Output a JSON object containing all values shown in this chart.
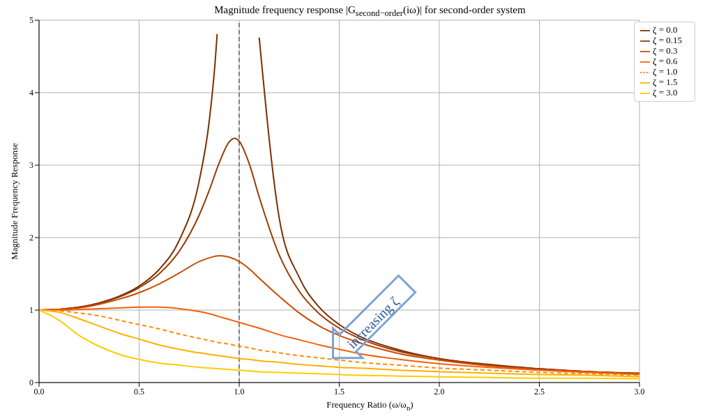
{
  "chart_data": {
    "type": "line",
    "title": "Magnitude frequency response |G$_{second−order}$(iω)| for second-order system",
    "xlabel": "Frequency Ratio (ω/ω$_{n}$)",
    "ylabel": "Magnitude Frequency Response",
    "x": [
      0,
      0.1,
      0.2,
      0.3,
      0.4,
      0.5,
      0.6,
      0.7,
      0.8,
      0.85,
      0.9,
      0.95,
      1.0,
      1.05,
      1.1,
      1.2,
      1.3,
      1.4,
      1.5,
      1.6,
      1.8,
      2.0,
      2.25,
      2.5,
      2.75,
      3.0
    ],
    "series": [
      {
        "name": "ζ = 0.0",
        "color": "#7a2e00",
        "x": [
          0,
          0.1,
          0.2,
          0.3,
          0.4,
          0.5,
          0.6,
          0.7,
          0.8,
          0.85,
          0.88,
          0.89,
          1.0,
          1.1,
          1.2,
          1.3,
          1.4,
          1.5,
          1.6,
          1.8,
          2.0,
          2.25,
          2.5,
          2.75,
          3.0
        ],
        "values": [
          1,
          1.01,
          1.04,
          1.1,
          1.19,
          1.33,
          1.56,
          1.96,
          2.78,
          3.6,
          4.43,
          4.81,
          null,
          4.76,
          2.27,
          1.45,
          1.04,
          0.8,
          0.64,
          0.45,
          0.33,
          0.25,
          0.19,
          0.15,
          0.13
        ]
      },
      {
        "name": "ζ = 0.15",
        "color": "#973a00",
        "x": [
          0,
          0.1,
          0.2,
          0.3,
          0.4,
          0.5,
          0.6,
          0.7,
          0.8,
          0.85,
          0.9,
          0.95,
          0.977,
          1.0,
          1.05,
          1.1,
          1.2,
          1.3,
          1.4,
          1.5,
          1.6,
          1.8,
          2.0,
          2.25,
          2.5,
          2.75,
          3.0
        ],
        "values": [
          1,
          1.01,
          1.04,
          1.09,
          1.18,
          1.31,
          1.5,
          1.81,
          2.31,
          2.65,
          3.03,
          3.32,
          3.37,
          3.33,
          3.02,
          2.56,
          1.76,
          1.26,
          0.95,
          0.75,
          0.61,
          0.43,
          0.33,
          0.24,
          0.19,
          0.15,
          0.12
        ]
      },
      {
        "name": "ζ = 0.3",
        "color": "#c84b00",
        "values": [
          1,
          1.01,
          1.03,
          1.08,
          1.15,
          1.24,
          1.36,
          1.51,
          1.67,
          1.72,
          1.75,
          1.73,
          1.67,
          1.57,
          1.44,
          1.19,
          0.96,
          0.78,
          0.65,
          0.55,
          0.4,
          0.31,
          0.23,
          0.18,
          0.15,
          0.12
        ]
      },
      {
        "name": "ζ = 0.6",
        "color": "#f2600c",
        "values": [
          1,
          1.0,
          1.01,
          1.02,
          1.03,
          1.04,
          1.04,
          1.02,
          0.98,
          0.95,
          0.91,
          0.87,
          0.83,
          0.79,
          0.75,
          0.66,
          0.59,
          0.52,
          0.46,
          0.4,
          0.32,
          0.26,
          0.21,
          0.17,
          0.14,
          0.11
        ]
      },
      {
        "name": "ζ = 1.0",
        "color": "#ff8c00",
        "line_style": "dashed",
        "values": [
          1,
          0.99,
          0.96,
          0.92,
          0.86,
          0.8,
          0.74,
          0.67,
          0.61,
          0.58,
          0.55,
          0.53,
          0.5,
          0.48,
          0.45,
          0.41,
          0.37,
          0.34,
          0.31,
          0.28,
          0.24,
          0.2,
          0.17,
          0.14,
          0.12,
          0.1
        ]
      },
      {
        "name": "ζ = 1.5",
        "color": "#ffb000",
        "values": [
          1,
          0.97,
          0.88,
          0.78,
          0.68,
          0.6,
          0.52,
          0.46,
          0.41,
          0.39,
          0.37,
          0.35,
          0.33,
          0.32,
          0.3,
          0.28,
          0.25,
          0.23,
          0.21,
          0.2,
          0.17,
          0.15,
          0.13,
          0.11,
          0.1,
          0.08
        ]
      },
      {
        "name": "ζ = 3.0",
        "color": "#ffcc00",
        "values": [
          1,
          0.86,
          0.65,
          0.5,
          0.39,
          0.32,
          0.27,
          0.24,
          0.21,
          0.2,
          0.19,
          0.18,
          0.17,
          0.16,
          0.15,
          0.14,
          0.13,
          0.12,
          0.11,
          0.1,
          0.09,
          0.08,
          0.07,
          0.06,
          0.06,
          0.05
        ]
      }
    ],
    "xlim": [
      0,
      3
    ],
    "xticks": [
      {
        "value": 0,
        "label": "0.0"
      },
      0.5,
      {
        "value": 1,
        "label": "1.0"
      },
      1.5,
      {
        "value": 2,
        "label": "2.0"
      },
      2.5,
      {
        "value": 3,
        "label": "3.0"
      }
    ],
    "ylim": [
      0,
      5
    ],
    "yticks": [
      0,
      1,
      2,
      3,
      4,
      5
    ],
    "ref_lines": [
      {
        "axis": "x",
        "value": 1,
        "color": "#808080",
        "line_style": "dashed"
      }
    ],
    "annotations": [
      {
        "text": "increasing ζ",
        "x": 1.5,
        "y": 0.85
      }
    ],
    "grid": true,
    "legend": "top right",
    "marker": "none",
    "line_style": "solid"
  }
}
